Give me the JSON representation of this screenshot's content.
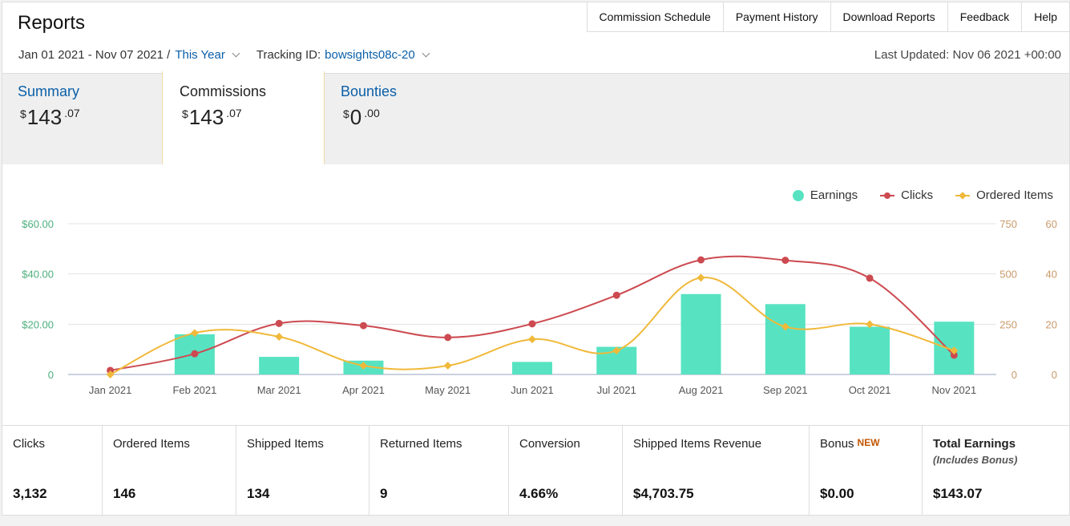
{
  "header": {
    "title": "Reports",
    "nav": [
      "Commission Schedule",
      "Payment History",
      "Download Reports",
      "Feedback",
      "Help"
    ],
    "date_range": "Jan 01 2021 - Nov 07 2021 /",
    "period": "This Year",
    "tracking_label": "Tracking ID:",
    "tracking_id": "bowsights08c-20",
    "last_updated": "Last Updated: Nov 06 2021 +00:00"
  },
  "tabs": [
    {
      "label": "Summary",
      "symbol": "$",
      "whole": "143",
      "cents": ".07"
    },
    {
      "label": "Commissions",
      "symbol": "$",
      "whole": "143",
      "cents": ".07"
    },
    {
      "label": "Bounties",
      "symbol": "$",
      "whole": "0",
      "cents": ".00"
    }
  ],
  "legend": {
    "earnings": "Earnings",
    "clicks": "Clicks",
    "ordered": "Ordered Items"
  },
  "colors": {
    "earnings": "#57e3c2",
    "clicks": "#cc4a50",
    "ordered": "#f0b93a",
    "link": "#0a5fa8",
    "left_axis": "#4caf7d",
    "right_axis": "#c99a6a"
  },
  "chart_data": {
    "type": "bar",
    "categories": [
      "Jan 2021",
      "Feb 2021",
      "Mar 2021",
      "Apr 2021",
      "May 2021",
      "Jun 2021",
      "Jul 2021",
      "Aug 2021",
      "Sep 2021",
      "Oct 2021",
      "Nov 2021"
    ],
    "series": [
      {
        "name": "Earnings",
        "type": "bar",
        "axis": "left",
        "values": [
          0,
          16,
          7,
          5.5,
          0,
          5,
          11,
          32,
          28,
          19,
          21
        ]
      },
      {
        "name": "Clicks",
        "type": "line",
        "axis": "right1",
        "values": [
          20,
          103,
          254,
          243,
          184,
          252,
          394,
          570,
          568,
          479,
          96
        ]
      },
      {
        "name": "Ordered Items",
        "type": "line",
        "axis": "right2",
        "values": [
          0,
          16.5,
          15,
          3.5,
          3.5,
          14,
          9.5,
          38.5,
          19,
          20,
          9.5
        ]
      }
    ],
    "left_axis": {
      "ticks": [
        "0",
        "$20.00",
        "$40.00",
        "$60.00"
      ],
      "ylim": [
        0,
        60
      ]
    },
    "right_axis_1": {
      "ticks": [
        "0",
        "250",
        "500",
        "750"
      ],
      "ylim": [
        0,
        750
      ]
    },
    "right_axis_2": {
      "ticks": [
        "0",
        "20",
        "40",
        "60"
      ],
      "ylim": [
        0,
        60
      ]
    },
    "legend_position": "top-right"
  },
  "stats": [
    {
      "label": "Clicks",
      "value": "3,132"
    },
    {
      "label": "Ordered Items",
      "value": "146"
    },
    {
      "label": "Shipped Items",
      "value": "134"
    },
    {
      "label": "Returned Items",
      "value": "9"
    },
    {
      "label": "Conversion",
      "value": "4.66%"
    },
    {
      "label": "Shipped Items Revenue",
      "value": "$4,703.75"
    },
    {
      "label": "Bonus",
      "badge": "NEW",
      "value": "$0.00"
    },
    {
      "label": "Total Earnings",
      "sub": "(Includes Bonus)",
      "value": "$143.07"
    }
  ]
}
